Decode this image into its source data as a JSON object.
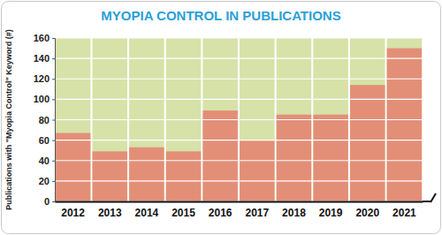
{
  "chart_data": {
    "type": "bar",
    "title": "MYOPIA CONTROL IN PUBLICATIONS",
    "y_label": "Publications with \"Myopia Control\" Keyword (#)",
    "categories": [
      "2012",
      "2013",
      "2014",
      "2015",
      "2016",
      "2017",
      "2018",
      "2019",
      "2020",
      "2021"
    ],
    "values": [
      67,
      49,
      53,
      49,
      89,
      60,
      85,
      85,
      114,
      150
    ],
    "color": "#e38f78",
    "ylim": [
      0,
      160
    ],
    "yticks": [
      0,
      20,
      40,
      60,
      80,
      100,
      120,
      140,
      160
    ],
    "grid": true
  }
}
